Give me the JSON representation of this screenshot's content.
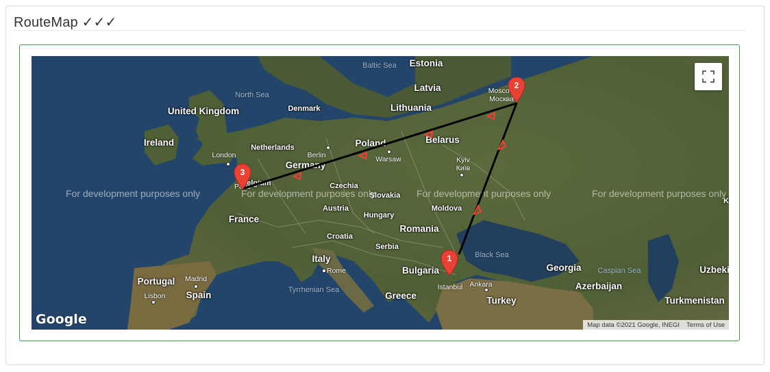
{
  "card": {
    "title": "RouteMap ✓✓✓"
  },
  "map": {
    "watermark": "For development purposes only",
    "attribution": {
      "data": "Map data ©2021 Google, INEGI",
      "terms": "Terms of Use"
    },
    "logo": "Google",
    "countries": [
      "Estonia",
      "Latvia",
      "Lithuania",
      "United Kingdom",
      "Ireland",
      "Denmark",
      "Netherlands",
      "Belarus",
      "Poland",
      "Germany",
      "Belgium",
      "Czechia",
      "Slovakia",
      "France",
      "Austria",
      "Hungary",
      "Moldova",
      "Romania",
      "Croatia",
      "Serbia",
      "Italy",
      "Bulgaria",
      "Portugal",
      "Spain",
      "Greece",
      "Turkey",
      "Georgia",
      "Azerbaijan",
      "Uzbeki",
      "Turkmenistan",
      "K"
    ],
    "seas": [
      "Baltic Sea",
      "North Sea",
      "Black Sea",
      "Tyrrhenian Sea",
      "Caspian Sea"
    ],
    "cities": [
      "Moscow",
      "Москва",
      "Berlin",
      "Warsaw",
      "Kyiv",
      "Київ",
      "London",
      "Paris",
      "Rome",
      "Madrid",
      "Lisbon",
      "Istanbul",
      "Ankara"
    ],
    "markers": [
      {
        "label": "1",
        "place": "Istanbul"
      },
      {
        "label": "2",
        "place": "Moscow"
      },
      {
        "label": "3",
        "place": "Paris"
      }
    ],
    "route_color": "#000000",
    "marker_color": "#e94235",
    "fullscreen_icon": "fullscreen-icon"
  }
}
